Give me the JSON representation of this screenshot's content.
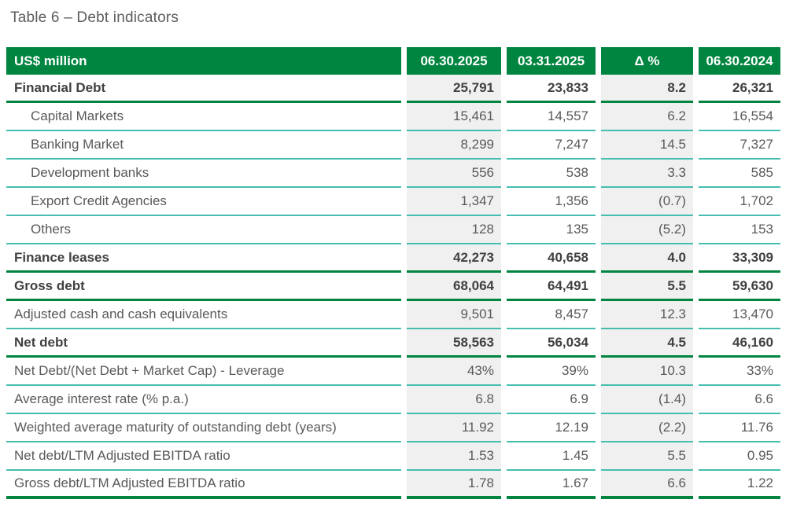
{
  "title": "Table 6 – Debt indicators",
  "colors": {
    "green": "#008540",
    "teal": "#45beb0",
    "shade": "#f0f0f0",
    "text": "#58595b",
    "text-bold": "#414042"
  },
  "table": {
    "header": {
      "label": "US$ million",
      "columns": [
        "06.30.2025",
        "03.31.2025",
        "Δ %",
        "06.30.2024"
      ]
    },
    "rows": [
      {
        "label": "Financial Debt",
        "values": [
          "25,791",
          "23,833",
          "8.2",
          "26,321"
        ],
        "bold": true,
        "indent": false,
        "sep": "thick"
      },
      {
        "label": "Capital Markets",
        "values": [
          "15,461",
          "14,557",
          "6.2",
          "16,554"
        ],
        "bold": false,
        "indent": true,
        "sep": "thin"
      },
      {
        "label": "Banking Market",
        "values": [
          "8,299",
          "7,247",
          "14.5",
          "7,327"
        ],
        "bold": false,
        "indent": true,
        "sep": "thin"
      },
      {
        "label": "Development banks",
        "values": [
          "556",
          "538",
          "3.3",
          "585"
        ],
        "bold": false,
        "indent": true,
        "sep": "thin"
      },
      {
        "label": "Export Credit Agencies",
        "values": [
          "1,347",
          "1,356",
          "(0.7)",
          "1,702"
        ],
        "bold": false,
        "indent": true,
        "sep": "thin"
      },
      {
        "label": "Others",
        "values": [
          "128",
          "135",
          "(5.2)",
          "153"
        ],
        "bold": false,
        "indent": true,
        "sep": "thin"
      },
      {
        "label": "Finance leases",
        "values": [
          "42,273",
          "40,658",
          "4.0",
          "33,309"
        ],
        "bold": true,
        "indent": false,
        "sep": "thick"
      },
      {
        "label": "Gross debt",
        "values": [
          "68,064",
          "64,491",
          "5.5",
          "59,630"
        ],
        "bold": true,
        "indent": false,
        "sep": "thick"
      },
      {
        "label": "Adjusted cash and cash equivalents",
        "values": [
          "9,501",
          "8,457",
          "12.3",
          "13,470"
        ],
        "bold": false,
        "indent": false,
        "sep": "thin"
      },
      {
        "label": "Net debt",
        "values": [
          "58,563",
          "56,034",
          "4.5",
          "46,160"
        ],
        "bold": true,
        "indent": false,
        "sep": "thick"
      },
      {
        "label": "Net Debt/(Net Debt + Market Cap) - Leverage",
        "values": [
          "43%",
          "39%",
          "10.3",
          "33%"
        ],
        "bold": false,
        "indent": false,
        "sep": "thin"
      },
      {
        "label": "Average interest rate (% p.a.)",
        "values": [
          "6.8",
          "6.9",
          "(1.4)",
          "6.6"
        ],
        "bold": false,
        "indent": false,
        "sep": "thin"
      },
      {
        "label": "Weighted average maturity of outstanding debt (years)",
        "values": [
          "11.92",
          "12.19",
          "(2.2)",
          "11.76"
        ],
        "bold": false,
        "indent": false,
        "sep": "thin"
      },
      {
        "label": "Net debt/LTM Adjusted EBITDA ratio",
        "values": [
          "1.53",
          "1.45",
          "5.5",
          "0.95"
        ],
        "bold": false,
        "indent": false,
        "sep": "thin"
      },
      {
        "label": "Gross debt/LTM Adjusted EBITDA ratio",
        "values": [
          "1.78",
          "1.67",
          "6.6",
          "1.22"
        ],
        "bold": false,
        "indent": false,
        "sep": "bottom"
      }
    ]
  }
}
